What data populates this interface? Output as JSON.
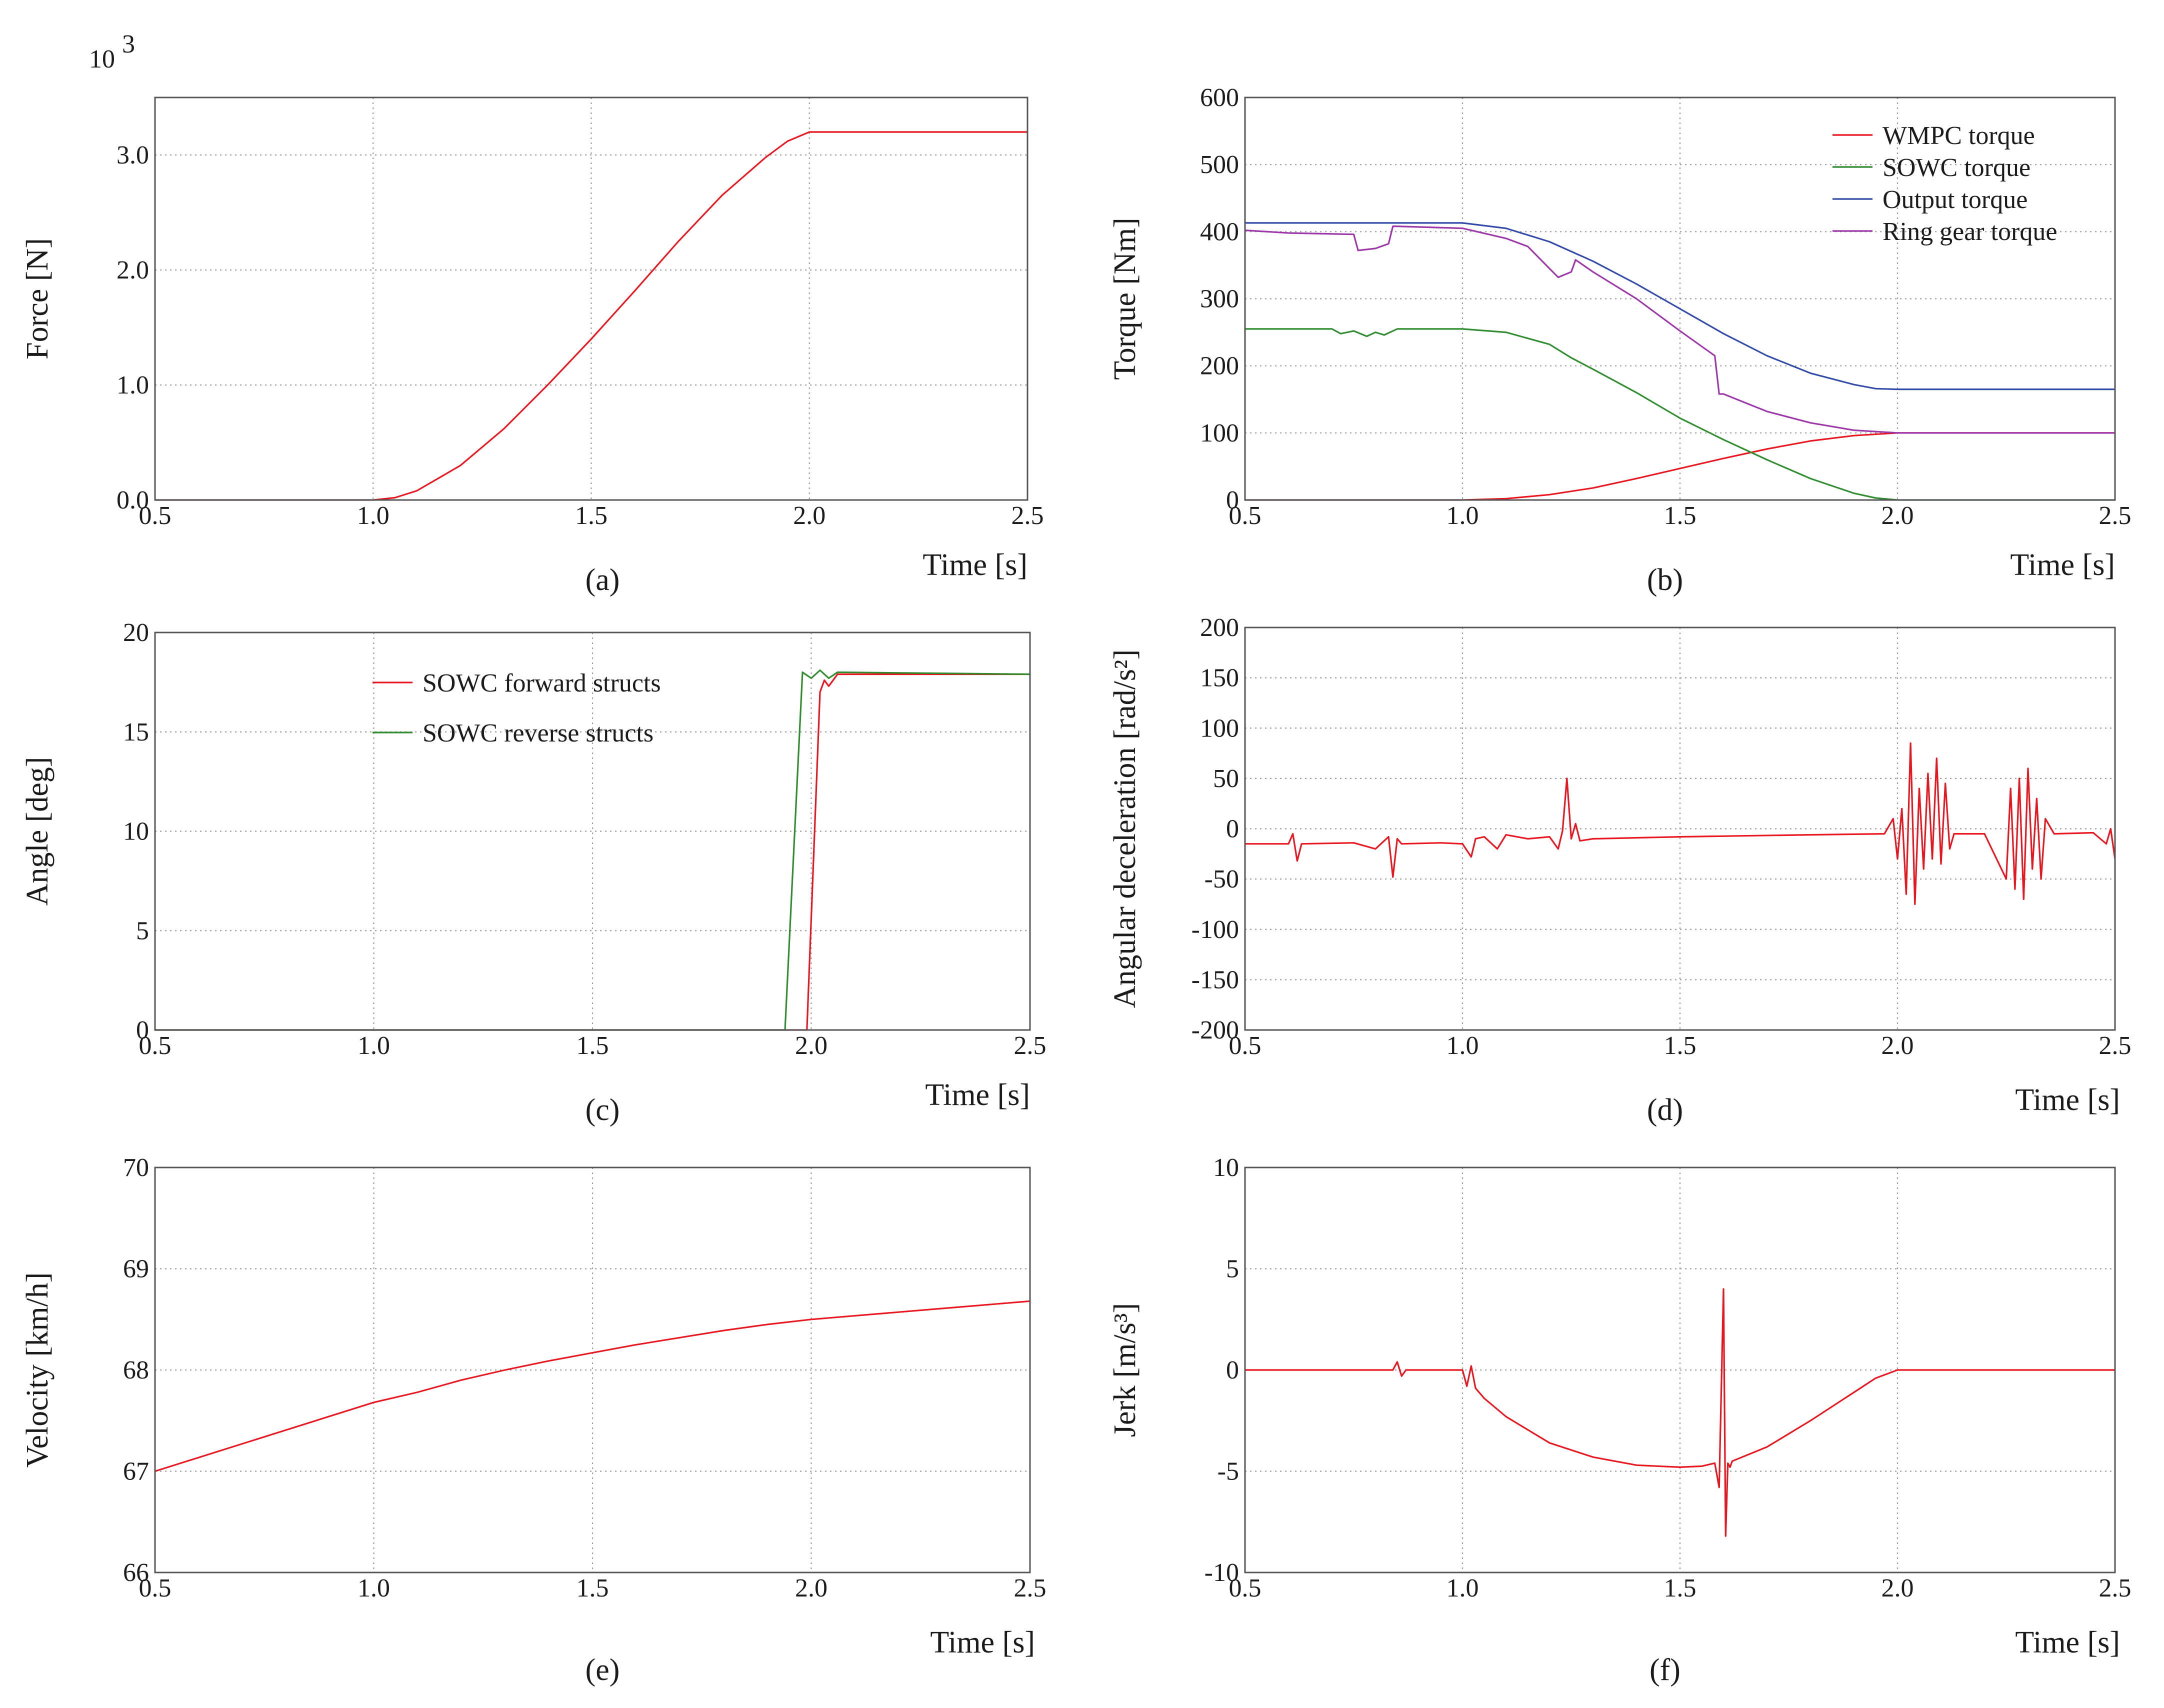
{
  "chart_data": [
    {
      "id": "a",
      "type": "line",
      "caption": "(a)",
      "ylabel": "Force [N]",
      "xlabel": "Time [s]",
      "y_multiplier_label": "10",
      "y_multiplier_exponent": "3",
      "xlim": [
        0.5,
        2.5
      ],
      "ylim": [
        0.0,
        3.5
      ],
      "xticks": [
        0.5,
        1.0,
        1.5,
        2.0,
        2.5
      ],
      "xtick_labels": [
        "0.5",
        "1.0",
        "1.5",
        "2.0",
        "2.5"
      ],
      "yticks": [
        0.0,
        1.0,
        2.0,
        3.0
      ],
      "ytick_labels": [
        "0.0",
        "1.0",
        "2.0",
        "3.0"
      ],
      "legend": false,
      "series": [
        {
          "name": "Force",
          "color": "#e8141e",
          "x": [
            0.5,
            1.0,
            1.05,
            1.1,
            1.2,
            1.3,
            1.4,
            1.5,
            1.6,
            1.7,
            1.8,
            1.9,
            1.95,
            2.0,
            2.5
          ],
          "y": [
            0.0,
            0.0,
            0.02,
            0.08,
            0.3,
            0.62,
            1.0,
            1.4,
            1.82,
            2.25,
            2.65,
            2.98,
            3.12,
            3.2,
            3.2
          ]
        }
      ]
    },
    {
      "id": "b",
      "type": "line",
      "caption": "(b)",
      "ylabel": "Torque [Nm]",
      "xlabel": "Time [s]",
      "xlim": [
        0.5,
        2.5
      ],
      "ylim": [
        0,
        600
      ],
      "xticks": [
        0.5,
        1.0,
        1.5,
        2.0,
        2.5
      ],
      "xtick_labels": [
        "0.5",
        "1.0",
        "1.5",
        "2.0",
        "2.5"
      ],
      "yticks": [
        0,
        100,
        200,
        300,
        400,
        500,
        600
      ],
      "ytick_labels": [
        "0",
        "100",
        "200",
        "300",
        "400",
        "500",
        "600"
      ],
      "legend": true,
      "legend_position": "top-right",
      "series": [
        {
          "name": "WMPC torque",
          "color": "#e8141e",
          "x": [
            0.5,
            1.0,
            1.1,
            1.2,
            1.3,
            1.4,
            1.5,
            1.6,
            1.7,
            1.8,
            1.9,
            2.0,
            2.5
          ],
          "y": [
            0,
            0,
            2,
            8,
            18,
            32,
            47,
            62,
            76,
            88,
            96,
            100,
            100
          ]
        },
        {
          "name": "SOWC torque",
          "color": "#2e8b2e",
          "x": [
            0.5,
            0.7,
            0.72,
            0.75,
            0.78,
            0.8,
            0.82,
            0.85,
            1.0,
            1.1,
            1.2,
            1.25,
            1.3,
            1.4,
            1.5,
            1.6,
            1.7,
            1.8,
            1.9,
            1.95,
            2.0,
            2.5
          ],
          "y": [
            255,
            255,
            248,
            252,
            244,
            250,
            246,
            255,
            255,
            250,
            232,
            212,
            195,
            160,
            122,
            90,
            60,
            32,
            10,
            3,
            0,
            0
          ]
        },
        {
          "name": "Output torque",
          "color": "#3048a8",
          "x": [
            0.5,
            1.0,
            1.1,
            1.2,
            1.3,
            1.4,
            1.5,
            1.6,
            1.7,
            1.8,
            1.9,
            1.95,
            2.0,
            2.5
          ],
          "y": [
            413,
            413,
            405,
            385,
            356,
            322,
            285,
            248,
            215,
            189,
            172,
            166,
            165,
            165
          ]
        },
        {
          "name": "Ring gear torque",
          "color": "#9b35a8",
          "x": [
            0.5,
            0.6,
            0.75,
            0.76,
            0.8,
            0.83,
            0.84,
            0.85,
            1.0,
            1.1,
            1.15,
            1.2,
            1.22,
            1.25,
            1.26,
            1.3,
            1.4,
            1.5,
            1.58,
            1.59,
            1.6,
            1.65,
            1.7,
            1.8,
            1.9,
            2.0,
            2.5
          ],
          "y": [
            402,
            398,
            396,
            372,
            375,
            382,
            408,
            408,
            405,
            390,
            378,
            345,
            332,
            340,
            358,
            340,
            300,
            252,
            215,
            158,
            158,
            145,
            132,
            115,
            104,
            100,
            100
          ]
        }
      ]
    },
    {
      "id": "c",
      "type": "line",
      "caption": "(c)",
      "ylabel": "Angle [deg]",
      "xlabel": "Time [s]",
      "xlim": [
        0.5,
        2.5
      ],
      "ylim": [
        0,
        20
      ],
      "xticks": [
        0.5,
        1.0,
        1.5,
        2.0,
        2.5
      ],
      "xtick_labels": [
        "0.5",
        "1.0",
        "1.5",
        "2.0",
        "2.5"
      ],
      "yticks": [
        0,
        5,
        10,
        15,
        20
      ],
      "ytick_labels": [
        "0",
        "5",
        "10",
        "15",
        "20"
      ],
      "legend": true,
      "legend_position": "top-center",
      "series": [
        {
          "name": "SOWC forward structs",
          "color": "#e8141e",
          "x": [
            0.5,
            1.99,
            2.02,
            2.03,
            2.04,
            2.06,
            2.5
          ],
          "y": [
            0,
            0,
            17.0,
            17.6,
            17.3,
            17.9,
            17.9
          ]
        },
        {
          "name": "SOWC reverse structs",
          "color": "#2e8b2e",
          "x": [
            0.5,
            1.94,
            1.98,
            2.0,
            2.02,
            2.04,
            2.06,
            2.5
          ],
          "y": [
            0,
            0,
            18.0,
            17.7,
            18.1,
            17.7,
            18.0,
            17.9
          ]
        }
      ]
    },
    {
      "id": "d",
      "type": "line",
      "caption": "(d)",
      "ylabel": "Angular deceleration [rad/s²]",
      "xlabel": "Time [s]",
      "xlim": [
        0.5,
        2.5
      ],
      "ylim": [
        -200,
        200
      ],
      "xticks": [
        0.5,
        1.0,
        1.5,
        2.0,
        2.5
      ],
      "xtick_labels": [
        "0.5",
        "1.0",
        "1.5",
        "2.0",
        "2.5"
      ],
      "yticks": [
        -200,
        -150,
        -100,
        -50,
        0,
        50,
        100,
        150,
        200
      ],
      "ytick_labels": [
        "-200",
        "-150",
        "-100",
        "-50",
        "0",
        "50",
        "100",
        "150",
        "200"
      ],
      "legend": false,
      "series": [
        {
          "name": "Angular deceleration",
          "color": "#e8141e",
          "x": [
            0.5,
            0.6,
            0.61,
            0.62,
            0.63,
            0.75,
            0.8,
            0.83,
            0.84,
            0.85,
            0.86,
            0.95,
            1.0,
            1.02,
            1.03,
            1.05,
            1.08,
            1.1,
            1.15,
            1.2,
            1.22,
            1.23,
            1.24,
            1.25,
            1.26,
            1.27,
            1.3,
            1.5,
            1.8,
            1.97,
            1.99,
            2.0,
            2.01,
            2.02,
            2.03,
            2.04,
            2.05,
            2.06,
            2.07,
            2.08,
            2.09,
            2.1,
            2.11,
            2.12,
            2.13,
            2.15,
            2.2,
            2.25,
            2.26,
            2.27,
            2.28,
            2.29,
            2.3,
            2.31,
            2.32,
            2.33,
            2.34,
            2.36,
            2.45,
            2.48,
            2.49,
            2.5
          ],
          "y": [
            -15,
            -15,
            -5,
            -32,
            -15,
            -14,
            -20,
            -8,
            -48,
            -10,
            -15,
            -14,
            -15,
            -28,
            -10,
            -8,
            -20,
            -6,
            -10,
            -8,
            -20,
            -2,
            50,
            -10,
            5,
            -12,
            -10,
            -8,
            -6,
            -5,
            10,
            -30,
            20,
            -65,
            85,
            -75,
            40,
            -40,
            55,
            -30,
            70,
            -35,
            45,
            -20,
            -5,
            -5,
            -5,
            -50,
            40,
            -60,
            50,
            -70,
            60,
            -40,
            30,
            -50,
            10,
            -5,
            -4,
            -15,
            0,
            -30
          ]
        }
      ]
    },
    {
      "id": "e",
      "type": "line",
      "caption": "(e)",
      "ylabel": "Velocity [km/h]",
      "xlabel": "Time [s]",
      "xlim": [
        0.5,
        2.5
      ],
      "ylim": [
        66,
        70
      ],
      "xticks": [
        0.5,
        1.0,
        1.5,
        2.0,
        2.5
      ],
      "xtick_labels": [
        "0.5",
        "1.0",
        "1.5",
        "2.0",
        "2.5"
      ],
      "yticks": [
        66,
        67,
        68,
        69,
        70
      ],
      "ytick_labels": [
        "66",
        "67",
        "68",
        "69",
        "70"
      ],
      "legend": false,
      "series": [
        {
          "name": "Velocity",
          "color": "#e8141e",
          "x": [
            0.5,
            1.0,
            1.1,
            1.2,
            1.3,
            1.4,
            1.5,
            1.6,
            1.7,
            1.8,
            1.9,
            2.0,
            2.5
          ],
          "y": [
            67.0,
            67.68,
            67.78,
            67.9,
            68.0,
            68.09,
            68.17,
            68.25,
            68.32,
            68.39,
            68.45,
            68.5,
            68.68
          ]
        }
      ]
    },
    {
      "id": "f",
      "type": "line",
      "caption": "(f)",
      "ylabel": "Jerk [m/s³]",
      "xlabel": "Time [s]",
      "xlim": [
        0.5,
        2.5
      ],
      "ylim": [
        -10,
        10
      ],
      "xticks": [
        0.5,
        1.0,
        1.5,
        2.0,
        2.5
      ],
      "xtick_labels": [
        "0.5",
        "1.0",
        "1.5",
        "2.0",
        "2.5"
      ],
      "yticks": [
        -10,
        -5,
        0,
        5,
        10
      ],
      "ytick_labels": [
        "-10",
        "-5",
        "0",
        "5",
        "10"
      ],
      "legend": false,
      "series": [
        {
          "name": "Jerk",
          "color": "#e8141e",
          "x": [
            0.5,
            0.84,
            0.85,
            0.86,
            0.87,
            1.0,
            1.01,
            1.02,
            1.03,
            1.05,
            1.1,
            1.2,
            1.3,
            1.4,
            1.5,
            1.55,
            1.58,
            1.59,
            1.6,
            1.605,
            1.61,
            1.615,
            1.62,
            1.7,
            1.8,
            1.9,
            1.95,
            2.0,
            2.5
          ],
          "y": [
            0,
            0,
            0.4,
            -0.3,
            0,
            0,
            -0.8,
            0.2,
            -0.9,
            -1.4,
            -2.3,
            -3.6,
            -4.3,
            -4.7,
            -4.8,
            -4.75,
            -4.6,
            -5.8,
            4.0,
            -8.2,
            -4.6,
            -4.8,
            -4.5,
            -3.8,
            -2.5,
            -1.1,
            -0.4,
            0,
            0
          ]
        }
      ]
    }
  ]
}
